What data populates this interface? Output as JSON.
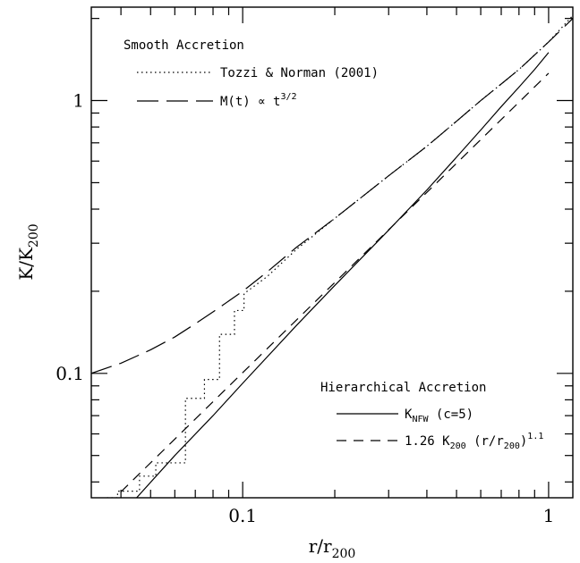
{
  "chart_data": {
    "type": "line",
    "xlabel": {
      "main": "r/r",
      "sub": "200"
    },
    "ylabel": {
      "main": "K/K",
      "sub": "200"
    },
    "xscale": "log",
    "yscale": "log",
    "xlim": [
      0.032,
      1.2
    ],
    "ylim": [
      0.035,
      2.2
    ],
    "x_tick_labels": [
      {
        "value": 0.1,
        "label": "0.1"
      },
      {
        "value": 1,
        "label": "1"
      }
    ],
    "y_tick_labels": [
      {
        "value": 0.1,
        "label": "0.1"
      },
      {
        "value": 1,
        "label": "1"
      }
    ],
    "legend_groups": [
      {
        "title": "Smooth Accretion",
        "placement": "top-left",
        "entries": [
          {
            "series": "tozzi",
            "parts": [
              {
                "t": "Tozzi & Norman (2001)"
              }
            ]
          },
          {
            "series": "smooth",
            "parts": [
              {
                "t": "M(t) ∝ t"
              },
              {
                "t": "3/2",
                "sup": true
              }
            ]
          }
        ]
      },
      {
        "title": "Hierarchical Accretion",
        "placement": "bottom-right",
        "entries": [
          {
            "series": "knfw",
            "parts": [
              {
                "t": "K"
              },
              {
                "t": "NFW",
                "sub": true
              },
              {
                "t": "  (c=5)"
              }
            ]
          },
          {
            "series": "powerlaw",
            "parts": [
              {
                "t": "1.26 K"
              },
              {
                "t": "200",
                "sub": true
              },
              {
                "t": " (r/r"
              },
              {
                "t": "200",
                "sub": true
              },
              {
                "t": ")"
              },
              {
                "t": "1.1",
                "sup": true
              }
            ]
          }
        ]
      }
    ],
    "series": [
      {
        "id": "smooth",
        "style": "long-dash",
        "x": [
          0.032,
          0.04,
          0.05,
          0.06,
          0.07,
          0.08,
          0.1,
          0.12,
          0.15,
          0.2,
          0.3,
          0.4,
          0.5,
          0.6,
          0.7,
          0.8,
          1.0,
          1.2
        ],
        "y": [
          0.1,
          0.109,
          0.122,
          0.136,
          0.152,
          0.168,
          0.2,
          0.235,
          0.29,
          0.37,
          0.53,
          0.68,
          0.84,
          1.0,
          1.15,
          1.3,
          1.64,
          2.0
        ]
      },
      {
        "id": "tozzi",
        "style": "dotted",
        "x": [
          0.036,
          0.039,
          0.039,
          0.046,
          0.046,
          0.052,
          0.052,
          0.065,
          0.065,
          0.075,
          0.075,
          0.084,
          0.084,
          0.094,
          0.094,
          0.101,
          0.101,
          0.12,
          0.15,
          0.2,
          0.3,
          0.4,
          0.5,
          0.6,
          0.7,
          0.8,
          1.0,
          1.2
        ],
        "y": [
          0.035,
          0.035,
          0.037,
          0.037,
          0.042,
          0.042,
          0.047,
          0.047,
          0.081,
          0.081,
          0.095,
          0.095,
          0.139,
          0.139,
          0.17,
          0.17,
          0.196,
          0.226,
          0.285,
          0.37,
          0.53,
          0.68,
          0.84,
          1.0,
          1.15,
          1.3,
          1.64,
          2.05
        ]
      },
      {
        "id": "knfw",
        "style": "solid",
        "x": [
          0.045,
          0.06,
          0.08,
          0.1,
          0.15,
          0.2,
          0.3,
          0.4,
          0.5,
          0.6,
          0.7,
          0.8,
          0.9,
          1.0
        ],
        "y": [
          0.035,
          0.05,
          0.07,
          0.092,
          0.15,
          0.21,
          0.335,
          0.47,
          0.62,
          0.78,
          0.95,
          1.12,
          1.3,
          1.5
        ]
      },
      {
        "id": "powerlaw",
        "style": "short-dash",
        "x": [
          0.04,
          1.0
        ],
        "y": [
          0.0368,
          1.26
        ]
      }
    ]
  }
}
